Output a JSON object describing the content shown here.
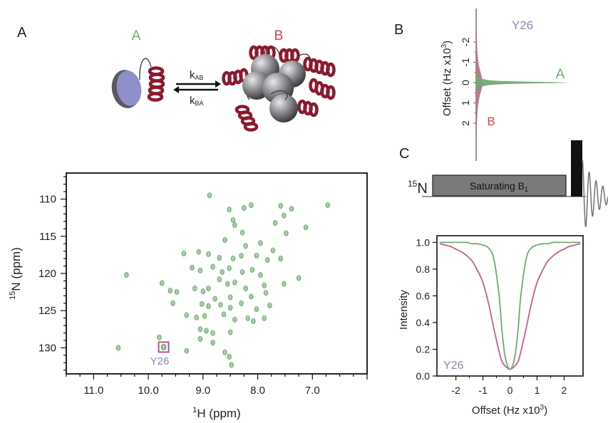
{
  "panels": {
    "a": "A",
    "b": "B",
    "c": "C"
  },
  "scheme": {
    "state_a": "A",
    "state_b": "B",
    "k_ab": {
      "base": "k",
      "sub": "AB"
    },
    "k_ba": {
      "base": "k",
      "sub": "BA"
    }
  },
  "hsqc": {
    "xlabel": {
      "sup": "1",
      "text": "H (ppm)"
    },
    "ylabel": {
      "sup": "15",
      "text": "N (ppm)"
    },
    "x_ticks": [
      "11.0",
      "10.0",
      "9.0",
      "8.0",
      "7.0"
    ],
    "y_ticks": [
      "110",
      "115",
      "120",
      "125",
      "130"
    ],
    "highlight_label": "Y26"
  },
  "spectrum_b": {
    "title": "Y26",
    "label_a": "A",
    "label_b": "B",
    "axis_label": {
      "pre": "Offset (Hz x10",
      "sup": "3",
      "post": ")"
    },
    "ticks": [
      "-2",
      "-1",
      "0",
      "1",
      "2"
    ]
  },
  "pulse": {
    "nucleus": {
      "sup": "15",
      "text": "N"
    },
    "block": {
      "text": "Saturating B",
      "sub": "1"
    }
  },
  "profile": {
    "annotation": "Y26",
    "xlabel": {
      "pre": "Offset (Hz x10",
      "sup": "3",
      "post": ")"
    },
    "ylabel": "Intensity",
    "x_ticks": [
      "-2",
      "-1",
      "0",
      "1",
      "2"
    ],
    "y_ticks": [
      "0.0",
      "0.2",
      "0.4",
      "0.6",
      "0.8",
      "1.0"
    ]
  },
  "colors": {
    "state_a": "#6faa6f",
    "state_b": "#c4608a",
    "helix": "#8b1a2e",
    "disc": "#8f8fc9",
    "label": "#8e86b4",
    "peak": "#6faa6f"
  },
  "chart_data": [
    {
      "type": "scatter",
      "xlabel": "1H (ppm)",
      "ylabel": "15N (ppm)",
      "xlim": [
        11.5,
        6.0
      ],
      "ylim": [
        133.5,
        106.5
      ],
      "x_ticks": [
        11.0,
        10.0,
        9.0,
        8.0,
        7.0
      ],
      "y_ticks": [
        110,
        115,
        120,
        125,
        130
      ],
      "series": [
        {
          "points": [
            [
              8.88,
              109.5
            ],
            [
              8.25,
              111.2
            ],
            [
              8.12,
              110.8
            ],
            [
              7.58,
              110.9
            ],
            [
              7.38,
              111.3
            ],
            [
              6.72,
              110.8
            ],
            [
              7.52,
              112.2
            ],
            [
              8.52,
              111.4
            ],
            [
              8.45,
              112.8
            ],
            [
              8.42,
              113.5
            ],
            [
              8.28,
              114.5
            ],
            [
              7.68,
              113.2
            ],
            [
              7.48,
              114.6
            ],
            [
              7.12,
              113.8
            ],
            [
              8.6,
              115.5
            ],
            [
              8.22,
              116.3
            ],
            [
              7.95,
              115.9
            ],
            [
              7.72,
              116.9
            ],
            [
              9.35,
              117.3
            ],
            [
              9.08,
              117.1
            ],
            [
              8.9,
              117.4
            ],
            [
              8.7,
              117.9
            ],
            [
              8.45,
              118.0
            ],
            [
              8.3,
              117.6
            ],
            [
              8.02,
              117.6
            ],
            [
              7.82,
              118.2
            ],
            [
              7.58,
              118.0
            ],
            [
              7.25,
              120.6
            ],
            [
              9.2,
              119.2
            ],
            [
              9.05,
              119.6
            ],
            [
              8.82,
              119.1
            ],
            [
              8.65,
              119.8
            ],
            [
              8.52,
              119.3
            ],
            [
              8.28,
              119.8
            ],
            [
              8.1,
              119.5
            ],
            [
              7.95,
              120.2
            ],
            [
              8.7,
              120.8
            ],
            [
              8.55,
              121.4
            ],
            [
              8.42,
              121.2
            ],
            [
              8.22,
              122.0
            ],
            [
              7.88,
              121.6
            ],
            [
              7.52,
              121.4
            ],
            [
              9.15,
              122.0
            ],
            [
              9.0,
              122.4
            ],
            [
              8.9,
              122.0
            ],
            [
              8.78,
              123.4
            ],
            [
              8.5,
              123.2
            ],
            [
              8.12,
              123.1
            ],
            [
              7.85,
              122.6
            ],
            [
              9.6,
              122.3
            ],
            [
              9.48,
              122.5
            ],
            [
              9.75,
              121.3
            ],
            [
              10.4,
              120.2
            ],
            [
              9.55,
              124.0
            ],
            [
              9.02,
              124.1
            ],
            [
              8.9,
              124.4
            ],
            [
              8.68,
              124.2
            ],
            [
              8.5,
              124.6
            ],
            [
              8.3,
              124.0
            ],
            [
              8.02,
              124.8
            ],
            [
              7.78,
              124.3
            ],
            [
              9.3,
              125.6
            ],
            [
              9.12,
              125.9
            ],
            [
              8.97,
              125.7
            ],
            [
              8.62,
              125.5
            ],
            [
              8.42,
              126.2
            ],
            [
              8.18,
              126.0
            ],
            [
              8.08,
              126.4
            ],
            [
              7.88,
              126.0
            ],
            [
              9.05,
              127.5
            ],
            [
              8.94,
              127.7
            ],
            [
              8.82,
              128.0
            ],
            [
              8.5,
              127.9
            ],
            [
              9.8,
              128.6
            ],
            [
              9.05,
              128.8
            ],
            [
              8.82,
              129.3
            ],
            [
              9.3,
              130.4
            ],
            [
              8.6,
              130.6
            ],
            [
              10.55,
              130.0
            ],
            [
              9.72,
              129.9
            ],
            [
              8.52,
              131.2
            ],
            [
              8.48,
              132.3
            ]
          ]
        },
        {
          "name": "Y26",
          "points": [
            [
              9.72,
              129.9
            ]
          ]
        }
      ]
    },
    {
      "type": "area",
      "title": "Y26",
      "xlabel": "Offset (Hz x10^3)",
      "xlim": [
        -2.6,
        2.6
      ],
      "series": [
        {
          "name": "A",
          "center": 0,
          "width_hz_x1e3": 0.1,
          "max_amplitude": 1.0
        },
        {
          "name": "B",
          "center": 0,
          "width_hz_x1e3": 1.5,
          "max_amplitude": 0.07
        }
      ]
    },
    {
      "type": "line",
      "title": "Y26",
      "xlabel": "Offset (Hz x10^3)",
      "ylabel": "Intensity",
      "xlim": [
        -2.7,
        2.7
      ],
      "ylim": [
        0.0,
        1.05
      ],
      "x": [
        -2.6,
        -2.4,
        -2.2,
        -2.0,
        -1.8,
        -1.6,
        -1.4,
        -1.2,
        -1.0,
        -0.8,
        -0.6,
        -0.4,
        -0.3,
        -0.2,
        -0.1,
        0.0,
        0.1,
        0.2,
        0.3,
        0.4,
        0.6,
        0.8,
        1.0,
        1.2,
        1.4,
        1.6,
        1.8,
        2.0,
        2.2,
        2.4,
        2.6
      ],
      "series": [
        {
          "name": "A",
          "values": [
            1.0,
            1.0,
            1.0,
            1.0,
            1.0,
            1.0,
            0.99,
            0.99,
            0.98,
            0.96,
            0.88,
            0.6,
            0.35,
            0.17,
            0.08,
            0.05,
            0.08,
            0.17,
            0.35,
            0.6,
            0.88,
            0.96,
            0.98,
            0.99,
            0.99,
            1.0,
            1.0,
            1.0,
            1.0,
            1.0,
            1.0
          ]
        },
        {
          "name": "B",
          "values": [
            0.99,
            0.98,
            0.97,
            0.95,
            0.93,
            0.9,
            0.86,
            0.79,
            0.7,
            0.55,
            0.36,
            0.18,
            0.11,
            0.08,
            0.06,
            0.05,
            0.06,
            0.08,
            0.11,
            0.18,
            0.36,
            0.55,
            0.7,
            0.79,
            0.86,
            0.9,
            0.93,
            0.95,
            0.97,
            0.98,
            0.99
          ]
        }
      ]
    }
  ]
}
